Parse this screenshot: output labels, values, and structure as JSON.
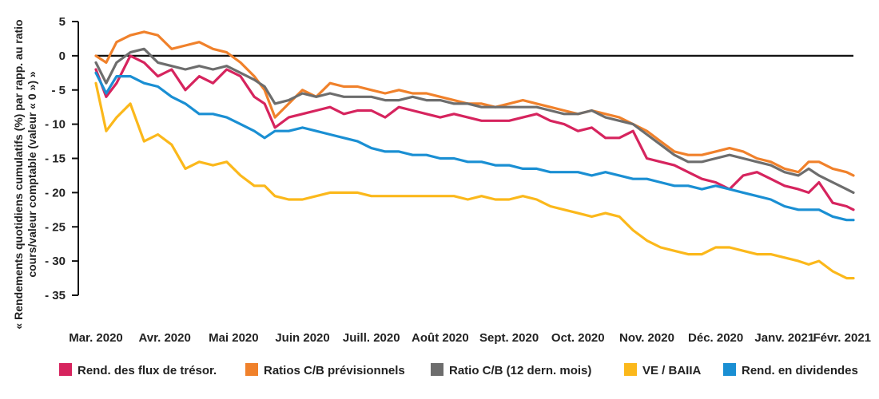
{
  "chart_data": {
    "type": "line",
    "ylabel": "« Rendements quotidiens cumulatifs (%) par rapp. au ratio cours/valeur comptable (valeur « 0 ») »",
    "ylim": [
      -35,
      5
    ],
    "y_ticks": [
      "5",
      "0",
      "- 5",
      "- 10",
      "- 15",
      "- 20",
      "- 25",
      "- 30",
      "- 35"
    ],
    "y_tick_values": [
      5,
      0,
      -5,
      -10,
      -15,
      -20,
      -25,
      -30,
      -35
    ],
    "x_ticks": [
      "Mar. 2020",
      "Avr. 2020",
      "Mai 2020",
      "Juin 2020",
      "Juill. 2020",
      "Août 2020",
      "Sept. 2020",
      "Oct. 2020",
      "Nov. 2020",
      "Déc. 2020",
      "Janv. 2021",
      "Févr. 2021"
    ],
    "x_tick_positions": [
      0,
      1,
      2,
      3,
      4,
      5,
      6,
      7,
      8,
      9,
      10,
      11
    ],
    "xlim": [
      0,
      11
    ],
    "grid": false,
    "reference_line": 0,
    "legend_position": "bottom",
    "series": [
      {
        "name": "Rend. des flux de trésor.",
        "color": "#d6245e",
        "x": [
          0,
          0.15,
          0.3,
          0.5,
          0.7,
          0.9,
          1.1,
          1.3,
          1.5,
          1.7,
          1.9,
          2.1,
          2.3,
          2.45,
          2.6,
          2.8,
          3.0,
          3.2,
          3.4,
          3.6,
          3.8,
          4.0,
          4.2,
          4.4,
          4.6,
          4.8,
          5.0,
          5.2,
          5.4,
          5.6,
          5.8,
          6.0,
          6.2,
          6.4,
          6.6,
          6.8,
          7.0,
          7.2,
          7.4,
          7.6,
          7.8,
          8.0,
          8.2,
          8.4,
          8.6,
          8.8,
          9.0,
          9.2,
          9.4,
          9.6,
          9.8,
          10.0,
          10.2,
          10.35,
          10.5,
          10.7,
          10.9,
          11.0
        ],
        "y": [
          -2,
          -6,
          -4,
          0,
          -1,
          -3,
          -2,
          -5,
          -3,
          -4,
          -2,
          -3,
          -6,
          -7,
          -10.5,
          -9,
          -8.5,
          -8,
          -7.5,
          -8.5,
          -8,
          -8,
          -9,
          -7.5,
          -8,
          -8.5,
          -9,
          -8.5,
          -9,
          -9.5,
          -9.5,
          -9.5,
          -9,
          -8.5,
          -9.5,
          -10,
          -11,
          -10.5,
          -12,
          -12,
          -11,
          -15,
          -15.5,
          -16,
          -17,
          -18,
          -18.5,
          -19.5,
          -17.5,
          -17,
          -18,
          -19,
          -19.5,
          -20,
          -18.5,
          -21.5,
          -22,
          -22.5
        ]
      },
      {
        "name": "Ratios C/B prévisionnels",
        "color": "#f0812b",
        "x": [
          0,
          0.15,
          0.3,
          0.5,
          0.7,
          0.9,
          1.1,
          1.3,
          1.5,
          1.7,
          1.9,
          2.1,
          2.3,
          2.45,
          2.6,
          2.8,
          3.0,
          3.2,
          3.4,
          3.6,
          3.8,
          4.0,
          4.2,
          4.4,
          4.6,
          4.8,
          5.0,
          5.2,
          5.4,
          5.6,
          5.8,
          6.0,
          6.2,
          6.4,
          6.6,
          6.8,
          7.0,
          7.2,
          7.4,
          7.6,
          7.8,
          8.0,
          8.2,
          8.4,
          8.6,
          8.8,
          9.0,
          9.2,
          9.4,
          9.6,
          9.8,
          10.0,
          10.2,
          10.35,
          10.5,
          10.7,
          10.9,
          11.0
        ],
        "y": [
          0,
          -1,
          2,
          3,
          3.5,
          3,
          1,
          1.5,
          2,
          1,
          0.5,
          -1,
          -3,
          -5,
          -9,
          -7,
          -5,
          -6,
          -4,
          -4.5,
          -4.5,
          -5,
          -5.5,
          -5,
          -5.5,
          -5.5,
          -6,
          -6.5,
          -7,
          -7,
          -7.5,
          -7,
          -6.5,
          -7,
          -7.5,
          -8,
          -8.5,
          -8,
          -8.5,
          -9,
          -10,
          -11,
          -12.5,
          -14,
          -14.5,
          -14.5,
          -14,
          -13.5,
          -14,
          -15,
          -15.5,
          -16.5,
          -17,
          -15.5,
          -15.5,
          -16.5,
          -17,
          -17.5
        ]
      },
      {
        "name": "Ratio C/B (12 dern. mois)",
        "color": "#6d6d6d",
        "x": [
          0,
          0.15,
          0.3,
          0.5,
          0.7,
          0.9,
          1.1,
          1.3,
          1.5,
          1.7,
          1.9,
          2.1,
          2.3,
          2.45,
          2.6,
          2.8,
          3.0,
          3.2,
          3.4,
          3.6,
          3.8,
          4.0,
          4.2,
          4.4,
          4.6,
          4.8,
          5.0,
          5.2,
          5.4,
          5.6,
          5.8,
          6.0,
          6.2,
          6.4,
          6.6,
          6.8,
          7.0,
          7.2,
          7.4,
          7.6,
          7.8,
          8.0,
          8.2,
          8.4,
          8.6,
          8.8,
          9.0,
          9.2,
          9.4,
          9.6,
          9.8,
          10.0,
          10.2,
          10.35,
          10.5,
          10.7,
          10.9,
          11.0
        ],
        "y": [
          -1,
          -4,
          -1,
          0.5,
          1,
          -1,
          -1.5,
          -2,
          -1.5,
          -2,
          -1.5,
          -2.5,
          -3.5,
          -4.5,
          -7,
          -6.5,
          -5.5,
          -6,
          -5.5,
          -6,
          -6,
          -6,
          -6.5,
          -6.5,
          -6,
          -6.5,
          -6.5,
          -7,
          -7,
          -7.5,
          -7.5,
          -7.5,
          -7.5,
          -7.5,
          -8,
          -8.5,
          -8.5,
          -8,
          -9,
          -9.5,
          -10,
          -11.5,
          -13,
          -14.5,
          -15.5,
          -15.5,
          -15,
          -14.5,
          -15,
          -15.5,
          -16,
          -17,
          -17.5,
          -16.5,
          -17.5,
          -18.5,
          -19.5,
          -20
        ]
      },
      {
        "name": "VE / BAIIA",
        "color": "#fbb81b",
        "x": [
          0,
          0.15,
          0.3,
          0.5,
          0.7,
          0.9,
          1.1,
          1.3,
          1.5,
          1.7,
          1.9,
          2.1,
          2.3,
          2.45,
          2.6,
          2.8,
          3.0,
          3.2,
          3.4,
          3.6,
          3.8,
          4.0,
          4.2,
          4.4,
          4.6,
          4.8,
          5.0,
          5.2,
          5.4,
          5.6,
          5.8,
          6.0,
          6.2,
          6.4,
          6.6,
          6.8,
          7.0,
          7.2,
          7.4,
          7.6,
          7.8,
          8.0,
          8.2,
          8.4,
          8.6,
          8.8,
          9.0,
          9.2,
          9.4,
          9.6,
          9.8,
          10.0,
          10.2,
          10.35,
          10.5,
          10.7,
          10.9,
          11.0
        ],
        "y": [
          -4,
          -11,
          -9,
          -7,
          -12.5,
          -11.5,
          -13,
          -16.5,
          -15.5,
          -16,
          -15.5,
          -17.5,
          -19,
          -19,
          -20.5,
          -21,
          -21,
          -20.5,
          -20,
          -20,
          -20,
          -20.5,
          -20.5,
          -20.5,
          -20.5,
          -20.5,
          -20.5,
          -20.5,
          -21,
          -20.5,
          -21,
          -21,
          -20.5,
          -21,
          -22,
          -22.5,
          -23,
          -23.5,
          -23,
          -23.5,
          -25.5,
          -27,
          -28,
          -28.5,
          -29,
          -29,
          -28,
          -28,
          -28.5,
          -29,
          -29,
          -29.5,
          -30,
          -30.5,
          -30,
          -31.5,
          -32.5,
          -32.5
        ]
      },
      {
        "name": "Rend. en dividendes",
        "color": "#1a8fd3",
        "x": [
          0,
          0.15,
          0.3,
          0.5,
          0.7,
          0.9,
          1.1,
          1.3,
          1.5,
          1.7,
          1.9,
          2.1,
          2.3,
          2.45,
          2.6,
          2.8,
          3.0,
          3.2,
          3.4,
          3.6,
          3.8,
          4.0,
          4.2,
          4.4,
          4.6,
          4.8,
          5.0,
          5.2,
          5.4,
          5.6,
          5.8,
          6.0,
          6.2,
          6.4,
          6.6,
          6.8,
          7.0,
          7.2,
          7.4,
          7.6,
          7.8,
          8.0,
          8.2,
          8.4,
          8.6,
          8.8,
          9.0,
          9.2,
          9.4,
          9.6,
          9.8,
          10.0,
          10.2,
          10.35,
          10.5,
          10.7,
          10.9,
          11.0
        ],
        "y": [
          -2.5,
          -5.5,
          -3,
          -3,
          -4,
          -4.5,
          -6,
          -7,
          -8.5,
          -8.5,
          -9,
          -10,
          -11,
          -12,
          -11,
          -11,
          -10.5,
          -11,
          -11.5,
          -12,
          -12.5,
          -13.5,
          -14,
          -14,
          -14.5,
          -14.5,
          -15,
          -15,
          -15.5,
          -15.5,
          -16,
          -16,
          -16.5,
          -16.5,
          -17,
          -17,
          -17,
          -17.5,
          -17,
          -17.5,
          -18,
          -18,
          -18.5,
          -19,
          -19,
          -19.5,
          -19,
          -19.5,
          -20,
          -20.5,
          -21,
          -22,
          -22.5,
          -22.5,
          -22.5,
          -23.5,
          -24,
          -24
        ]
      }
    ]
  }
}
